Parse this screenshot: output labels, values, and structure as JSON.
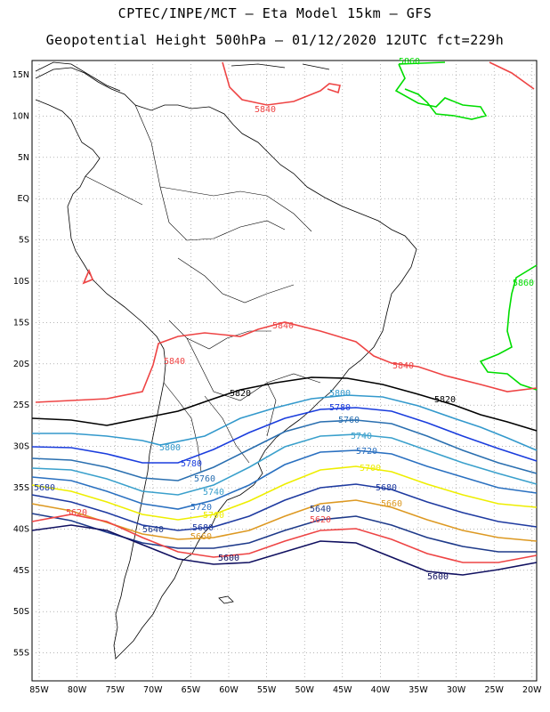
{
  "header": {
    "title_line1": "CPTEC/INPE/MCT –  Eta Model 15km – GFS",
    "title_line2": "Geopotential Height 500hPa – 01/12/2020 12UTC fct=229h"
  },
  "axes": {
    "lat_labels": [
      "15N",
      "10N",
      "5N",
      "EQ",
      "5S",
      "10S",
      "15S",
      "20S",
      "25S",
      "30S",
      "35S",
      "40S",
      "45S",
      "50S",
      "55S"
    ],
    "lon_labels": [
      "85W",
      "80W",
      "75W",
      "70W",
      "65W",
      "60W",
      "55W",
      "50W",
      "45W",
      "40W",
      "35W",
      "30W",
      "25W",
      "20W"
    ]
  },
  "contours": [
    {
      "id": "c5860",
      "value": "5860",
      "color": "#00dd00",
      "labels": [
        "5860",
        "5860"
      ]
    },
    {
      "id": "c5840",
      "value": "5840",
      "color": "#ee4444",
      "labels": [
        "5840",
        "5840",
        "5840",
        "5840"
      ]
    },
    {
      "id": "c5820",
      "value": "5820",
      "color": "#000000",
      "labels": [
        "5820",
        "5820"
      ]
    },
    {
      "id": "c5800",
      "value": "5800",
      "color": "#3399cc",
      "labels": [
        "5800",
        "5800"
      ]
    },
    {
      "id": "c5780",
      "value": "5780",
      "color": "#1a3ddd",
      "labels": [
        "5780",
        "5780"
      ]
    },
    {
      "id": "c5760",
      "value": "5760",
      "color": "#2a6fb0",
      "labels": [
        "5760",
        "5760"
      ]
    },
    {
      "id": "c5740",
      "value": "5740",
      "color": "#3aa0cc",
      "labels": [
        "5740",
        "5740"
      ]
    },
    {
      "id": "c5720",
      "value": "5720",
      "color": "#2a70c0",
      "labels": [
        "5720",
        "5720"
      ]
    },
    {
      "id": "c5700",
      "value": "5700",
      "color": "#eeee00",
      "labels": [
        "5700",
        "5700"
      ]
    },
    {
      "id": "c5680",
      "value": "5680",
      "color": "#1e3aa0",
      "labels": [
        "5680",
        "5680",
        "5680"
      ]
    },
    {
      "id": "c5660",
      "value": "5660",
      "color": "#dd9922",
      "labels": [
        "5660",
        "5660"
      ]
    },
    {
      "id": "c5640",
      "value": "5640",
      "color": "#1e3a8a",
      "labels": [
        "5640",
        "5640"
      ]
    },
    {
      "id": "c5620",
      "value": "5620",
      "color": "#ee4444",
      "labels": [
        "5620",
        "5620"
      ]
    },
    {
      "id": "c5600",
      "value": "5600",
      "color": "#101060",
      "labels": [
        "5600",
        "5600"
      ]
    }
  ]
}
